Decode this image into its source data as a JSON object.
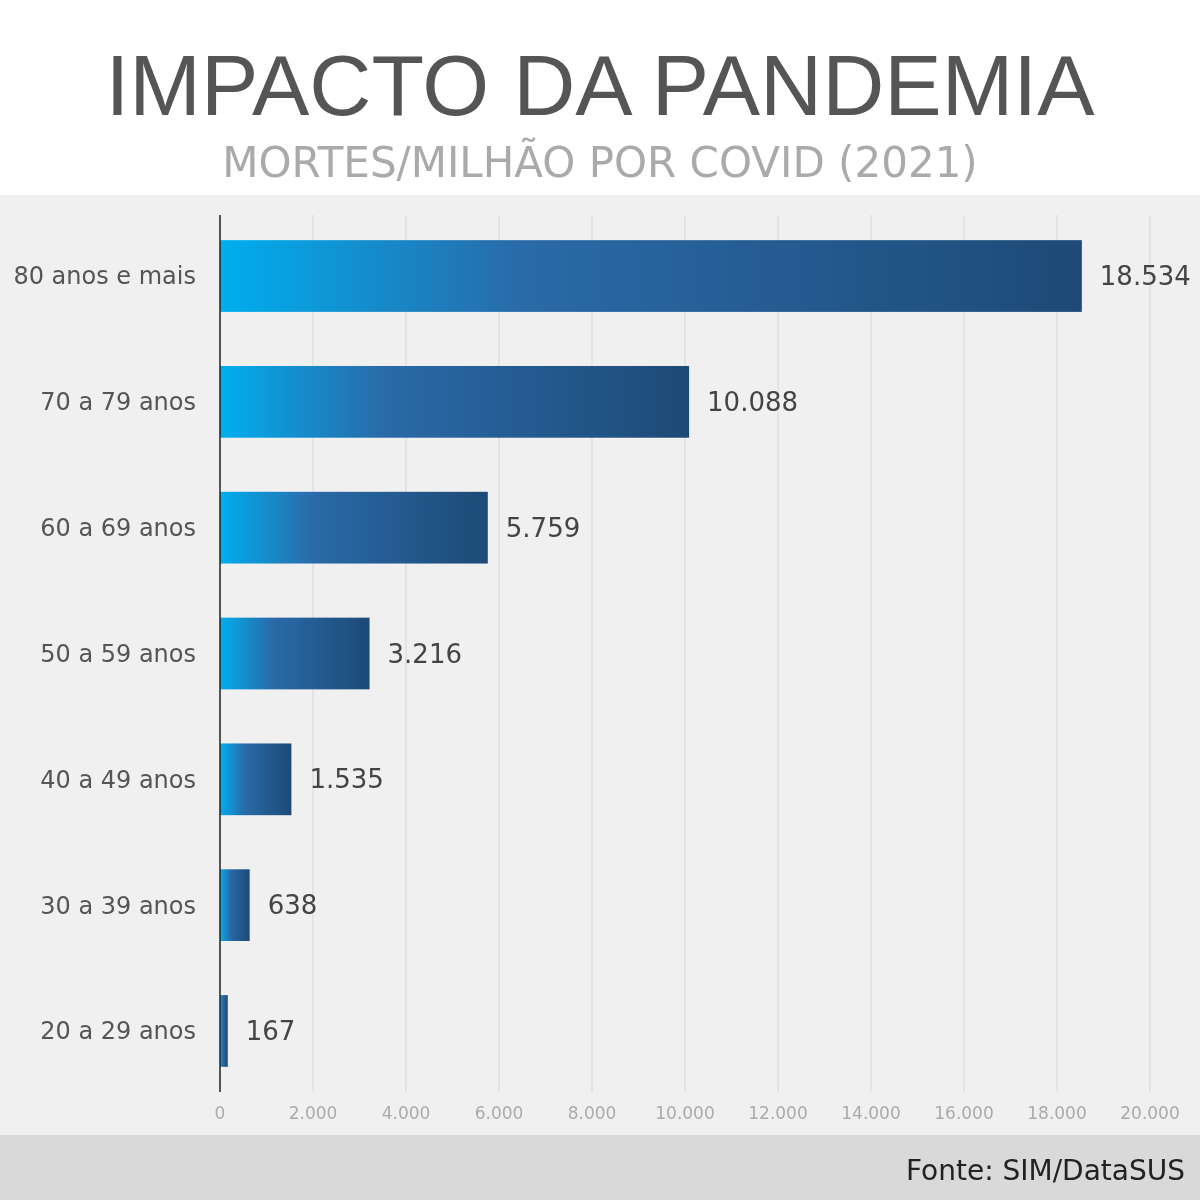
{
  "chart_data": {
    "type": "bar",
    "orientation": "horizontal",
    "title": "IMPACTO DA PANDEMIA",
    "subtitle": "MORTES/MILHÃO POR COVID (2021)",
    "categories": [
      "80 anos e mais",
      "70 a 79 anos",
      "60 a 69 anos",
      "50 a 59 anos",
      "40 a 49 anos",
      "30 a 39 anos",
      "20 a 29 anos"
    ],
    "values": [
      18534,
      10088,
      5759,
      3216,
      1535,
      638,
      167
    ],
    "value_labels": [
      "18.534",
      "10.088",
      "5.759",
      "3.216",
      "1.535",
      "638",
      "167"
    ],
    "color": "#2a6aa8",
    "xlim": [
      0,
      20000
    ],
    "xticks": [
      0,
      {
        "value": 2000,
        "label": "2.000"
      },
      {
        "value": 4000,
        "label": "4.000"
      },
      {
        "value": 6000,
        "label": "6.000"
      },
      {
        "value": 8000,
        "label": "8.000"
      },
      {
        "value": 10000,
        "label": "10.000"
      },
      {
        "value": 12000,
        "label": "12.000"
      },
      {
        "value": 14000,
        "label": "14.000"
      },
      {
        "value": 16000,
        "label": "16.000"
      },
      {
        "value": 18000,
        "label": "18.000"
      },
      {
        "value": 20000,
        "label": "20.000"
      }
    ],
    "grid": "x",
    "annotations": [
      "Fonte: SIM/DataSUS"
    ]
  }
}
